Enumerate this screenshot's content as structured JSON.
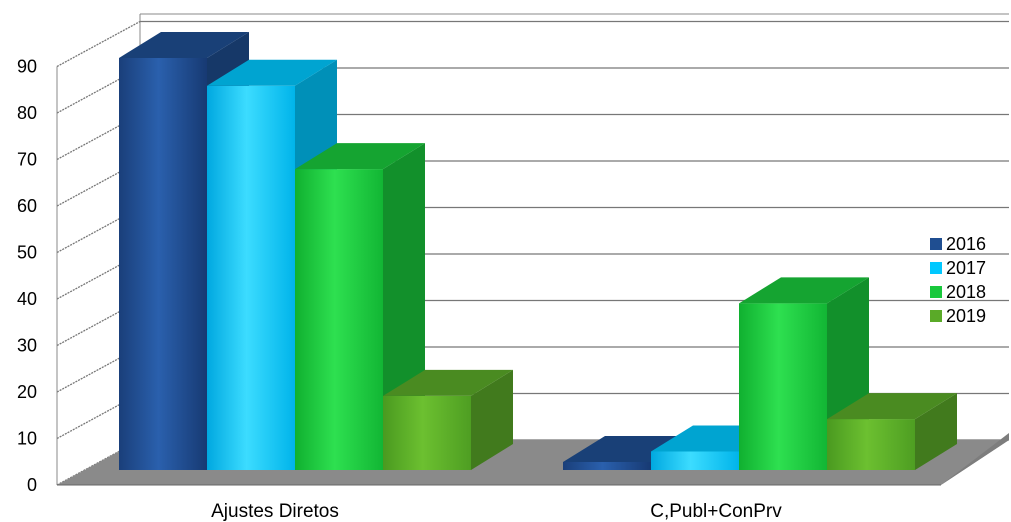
{
  "chart_data": {
    "type": "bar",
    "categories": [
      "Ajustes Diretos",
      "C,Publ+ConPrv"
    ],
    "series": [
      {
        "name": "2016",
        "values": [
          89,
          0.5
        ],
        "color": "#1f4e91"
      },
      {
        "name": "2017",
        "values": [
          83,
          4
        ],
        "color": "#00c8ff"
      },
      {
        "name": "2018",
        "values": [
          65,
          36
        ],
        "color": "#19c83c"
      },
      {
        "name": "2019",
        "values": [
          16,
          11
        ],
        "color": "#5aaa28"
      }
    ],
    "y_ticks": [
      "0",
      "10",
      "20",
      "30",
      "40",
      "50",
      "60",
      "70",
      "80",
      "90"
    ],
    "ylim": [
      0,
      90
    ],
    "grid": true,
    "legend": "right",
    "title": "",
    "xlabel": "",
    "ylabel": ""
  }
}
